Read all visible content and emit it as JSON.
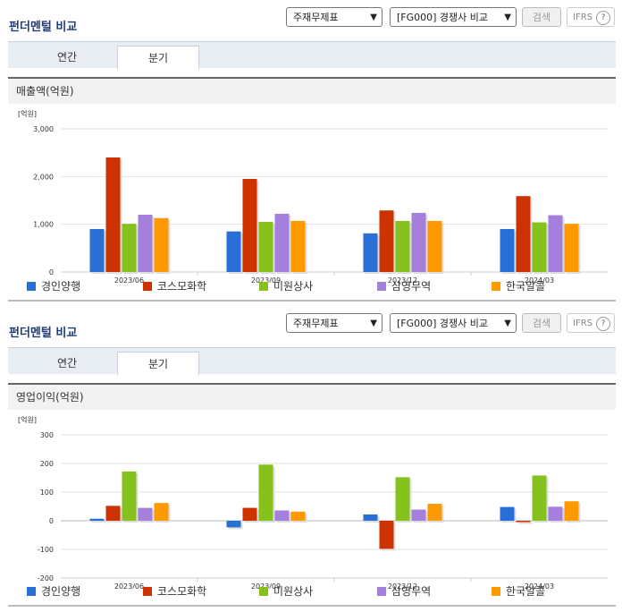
{
  "sections": [
    {
      "title": "펀더멘털 비교",
      "select_statement": "주재무제표",
      "select_compare": "[FG000] 경쟁사 비교",
      "search_label": "검색",
      "ifrs_label": "IFRS",
      "ifrs_help": "?",
      "tabs": [
        {
          "label": "연간"
        },
        {
          "label": "분기"
        }
      ],
      "active_tab": "분기",
      "subtitle": "매출액(억원)",
      "unit_label": "[억원]"
    },
    {
      "title": "펀더멘털 비교",
      "select_statement": "주재무제표",
      "select_compare": "[FG000] 경쟁사 비교",
      "search_label": "검색",
      "ifrs_label": "IFRS",
      "ifrs_help": "?",
      "tabs": [
        {
          "label": "연간"
        },
        {
          "label": "분기"
        }
      ],
      "active_tab": "분기",
      "subtitle": "영업이익(억원)",
      "unit_label": "[억원]"
    }
  ],
  "colors": {
    "경인양행": "#2a6fd6",
    "코스모화학": "#cc3300",
    "미원상사": "#86c21d",
    "삼영무역": "#a57fdc",
    "한국알콜": "#ff9900"
  },
  "chart_data": [
    {
      "type": "bar",
      "title": "매출액(억원)",
      "ylabel": "[억원]",
      "categories": [
        "2023/06",
        "2023/09",
        "2023/12",
        "2024/03"
      ],
      "ylim": [
        0,
        3000
      ],
      "yticks": [
        "0",
        "1,000",
        "2,000",
        "3,000"
      ],
      "ytick_values": [
        0,
        1000,
        2000,
        3000
      ],
      "grid": true,
      "legend": "bottom",
      "series": [
        {
          "name": "경인양행",
          "values": [
            900,
            850,
            810,
            900
          ]
        },
        {
          "name": "코스모화학",
          "values": [
            2400,
            1950,
            1290,
            1590
          ]
        },
        {
          "name": "미원상사",
          "values": [
            1010,
            1050,
            1070,
            1040
          ]
        },
        {
          "name": "삼영무역",
          "values": [
            1200,
            1220,
            1240,
            1190
          ]
        },
        {
          "name": "한국알콜",
          "values": [
            1130,
            1070,
            1070,
            1010
          ]
        }
      ]
    },
    {
      "type": "bar",
      "title": "영업이익(억원)",
      "ylabel": "[억원]",
      "categories": [
        "2023/06",
        "2023/09",
        "2023/12",
        "2024/03"
      ],
      "ylim": [
        -200,
        300
      ],
      "yticks": [
        "-200",
        "-100",
        "0",
        "100",
        "200",
        "300"
      ],
      "ytick_values": [
        -200,
        -100,
        0,
        100,
        200,
        300
      ],
      "grid": true,
      "legend": "bottom",
      "series": [
        {
          "name": "경인양행",
          "values": [
            7,
            -23,
            22,
            48
          ]
        },
        {
          "name": "코스모화학",
          "values": [
            52,
            45,
            -98,
            -5
          ]
        },
        {
          "name": "미원상사",
          "values": [
            172,
            196,
            152,
            158
          ]
        },
        {
          "name": "삼영무역",
          "values": [
            45,
            36,
            39,
            49
          ]
        },
        {
          "name": "한국알콜",
          "values": [
            62,
            32,
            59,
            68
          ]
        }
      ]
    }
  ]
}
